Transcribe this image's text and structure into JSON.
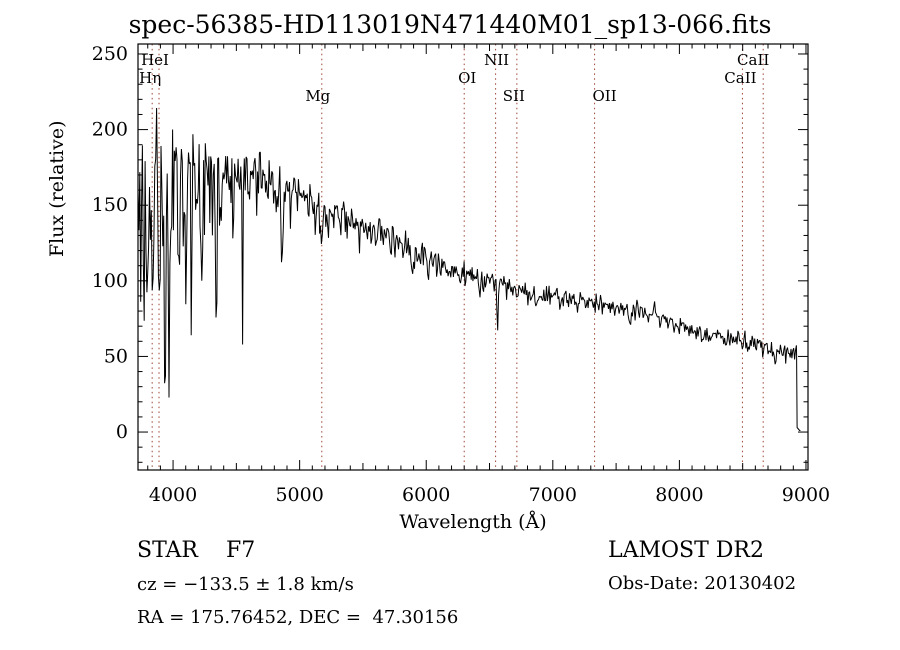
{
  "title": "spec-56385-HD113019N471440M01_sp13-066.fits",
  "colors": {
    "spectrum_line": "#000000",
    "line_marker": "#9e4534",
    "axis": "#000000",
    "background": "#ffffff"
  },
  "annotations": {
    "class_label": "STAR    F7",
    "cz": "cz = −133.5 ± 1.8 km/s",
    "ra_dec": "RA = 175.76452, DEC =  47.30156",
    "survey": "LAMOST DR2",
    "obs_date": "Obs-Date: 20130402"
  },
  "chart_data": {
    "type": "line",
    "title": "spec-56385-HD113019N471440M01_sp13-066.fits",
    "xlabel": "Wavelength (Å)",
    "ylabel": "Flux (relative)",
    "xlim": [
      3723,
      9016
    ],
    "ylim": [
      -25.1,
      256.6
    ],
    "grid": false,
    "x_ticks": [
      4000,
      5000,
      6000,
      7000,
      8000,
      9000
    ],
    "x_minor_step": 100,
    "x_medium_step": 500,
    "y_ticks": [
      0,
      50,
      100,
      150,
      200,
      250
    ],
    "y_minor_step": 10,
    "line_markers": [
      {
        "label": "HeI",
        "wavelength": 3889,
        "row": 1,
        "dx": -4
      },
      {
        "label": "Hη",
        "wavelength": 3835,
        "row": 2,
        "dx": -2
      },
      {
        "label": "Mg",
        "wavelength": 5175,
        "row": 3,
        "dx": -4
      },
      {
        "label": "OI",
        "wavelength": 6300,
        "row": 2,
        "dx": 3
      },
      {
        "label": "NII",
        "wavelength": 6548,
        "row": 1,
        "dx": 1
      },
      {
        "label": "SII",
        "wavelength": 6716,
        "row": 3,
        "dx": -3
      },
      {
        "label": "OII",
        "wavelength": 7330,
        "row": 3,
        "dx": 10
      },
      {
        "label": "CaII",
        "wavelength": 8498,
        "row": 2,
        "dx": -2
      },
      {
        "label": "CaII",
        "wavelength": 8662,
        "row": 1,
        "dx": -10
      }
    ],
    "spectrum": {
      "x_start": 3723,
      "x_end": 8925,
      "x_step": 7,
      "noise_seed": 11,
      "continuum": [
        [
          3723,
          148
        ],
        [
          3770,
          162
        ],
        [
          3850,
          168
        ],
        [
          3950,
          170
        ],
        [
          4050,
          171
        ],
        [
          4200,
          173
        ],
        [
          4350,
          175
        ],
        [
          4480,
          175
        ],
        [
          4600,
          171
        ],
        [
          4750,
          166
        ],
        [
          4900,
          158
        ],
        [
          5000,
          155
        ],
        [
          5100,
          151
        ],
        [
          5200,
          147
        ],
        [
          5350,
          142
        ],
        [
          5500,
          137
        ],
        [
          5650,
          131
        ],
        [
          5800,
          125
        ],
        [
          5950,
          118
        ],
        [
          6100,
          111
        ],
        [
          6250,
          106
        ],
        [
          6400,
          102
        ],
        [
          6550,
          99
        ],
        [
          6700,
          95
        ],
        [
          6850,
          92
        ],
        [
          7000,
          90
        ],
        [
          7150,
          88
        ],
        [
          7300,
          86
        ],
        [
          7450,
          84
        ],
        [
          7600,
          82
        ],
        [
          7700,
          80
        ],
        [
          7800,
          78
        ],
        [
          7900,
          74
        ],
        [
          8000,
          70
        ],
        [
          8100,
          67
        ],
        [
          8200,
          65
        ],
        [
          8350,
          63
        ],
        [
          8500,
          61
        ],
        [
          8650,
          58
        ],
        [
          8800,
          54
        ],
        [
          8900,
          52
        ],
        [
          8925,
          51
        ]
      ],
      "noise_sigma": [
        [
          3723,
          34
        ],
        [
          3800,
          36
        ],
        [
          3900,
          32
        ],
        [
          4000,
          28
        ],
        [
          4100,
          24
        ],
        [
          4250,
          16
        ],
        [
          4400,
          12
        ],
        [
          4600,
          10
        ],
        [
          4800,
          9
        ],
        [
          5000,
          8
        ],
        [
          5300,
          6.5
        ],
        [
          5700,
          5.5
        ],
        [
          6200,
          4.5
        ],
        [
          6800,
          3.5
        ],
        [
          7500,
          3
        ],
        [
          8200,
          3
        ],
        [
          8900,
          3.2
        ]
      ],
      "features": [
        [
          3770,
          -80,
          5
        ],
        [
          3798,
          -70,
          5
        ],
        [
          3835,
          -90,
          6
        ],
        [
          3889,
          -80,
          6
        ],
        [
          3933,
          -125,
          7
        ],
        [
          3970,
          -100,
          7
        ],
        [
          4045,
          -45,
          5
        ],
        [
          4102,
          -90,
          6
        ],
        [
          4144,
          -40,
          5
        ],
        [
          4226,
          -45,
          5
        ],
        [
          4340,
          -80,
          6
        ],
        [
          4383,
          -40,
          5
        ],
        [
          4472,
          -35,
          5
        ],
        [
          4550,
          -120,
          3
        ],
        [
          4861,
          -46,
          7
        ],
        [
          5175,
          -24,
          9
        ],
        [
          5893,
          -14,
          7
        ],
        [
          6563,
          -26,
          5
        ],
        [
          6870,
          -9,
          7
        ],
        [
          7190,
          -7,
          6
        ],
        [
          7605,
          -10,
          7
        ],
        [
          7665,
          9,
          3
        ],
        [
          7806,
          9,
          3
        ],
        [
          8230,
          -6,
          5
        ],
        [
          8498,
          -7,
          5
        ],
        [
          8542,
          -7,
          5
        ],
        [
          8662,
          -8,
          5
        ],
        [
          8760,
          -6,
          4
        ]
      ],
      "end_drop": [
        [
          8926,
          51
        ],
        [
          8930,
          3
        ],
        [
          8950,
          1
        ],
        [
          8956,
          1
        ]
      ]
    }
  }
}
